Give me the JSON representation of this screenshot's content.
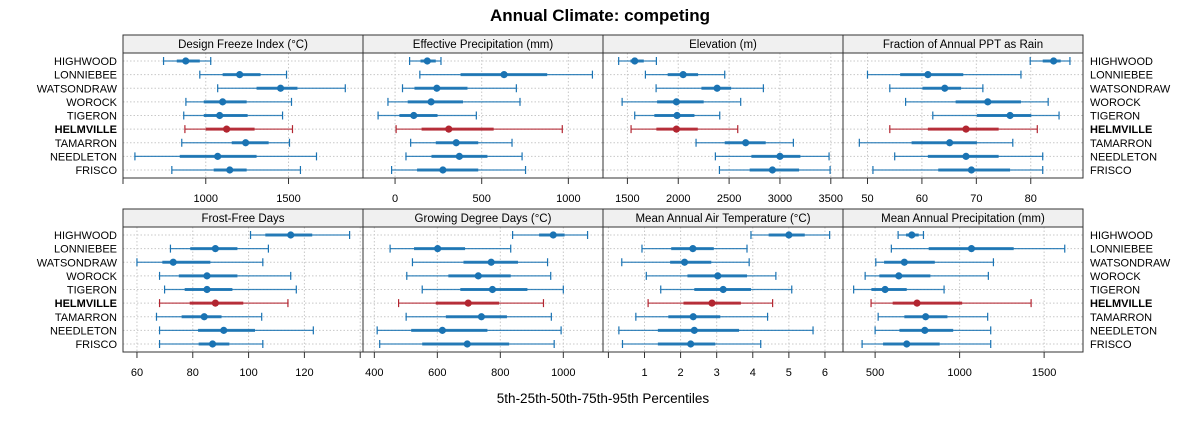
{
  "chart_data": {
    "type": "dot-interval",
    "title": "Annual Climate: competing",
    "xlabel": "5th-25th-50th-75th-95th Percentiles",
    "grid": true,
    "highlight_site": "HELMVILLE",
    "colors": {
      "default": "#1a73b3",
      "highlight": "#b22530",
      "strip": "#f0f0f0",
      "grid": "#c8c8c8"
    },
    "sites": [
      "HIGHWOOD",
      "LONNIEBEE",
      "WATSONDRAW",
      "WOROCK",
      "TIGERON",
      "HELMVILLE",
      "TAMARRON",
      "NEEDLETON",
      "FRISCO"
    ],
    "percentile_order": [
      "p5",
      "p25",
      "p50",
      "p75",
      "p95"
    ],
    "panels": [
      {
        "title": "Design Freeze Index (°C)",
        "xlim": [
          500,
          1950
        ],
        "ticks": [
          500,
          1000,
          1500
        ],
        "tick_labels": [
          "",
          "1000",
          "1500"
        ],
        "values": [
          [
            745,
            825,
            879,
            964,
            1030
          ],
          [
            964,
            1102,
            1205,
            1331,
            1488
          ],
          [
            1072,
            1307,
            1452,
            1554,
            1843
          ],
          [
            880,
            988,
            1102,
            1247,
            1518
          ],
          [
            867,
            988,
            1084,
            1253,
            1464
          ],
          [
            874,
            1000,
            1126,
            1295,
            1524
          ],
          [
            855,
            1157,
            1241,
            1380,
            1506
          ],
          [
            572,
            843,
            1072,
            1307,
            1669
          ],
          [
            795,
            1048,
            1145,
            1247,
            1572
          ]
        ]
      },
      {
        "title": "Effective Precipitation (mm)",
        "xlim": [
          -185,
          1200
        ],
        "ticks": [
          0,
          500,
          1000
        ],
        "tick_labels": [
          "0",
          "500",
          "1000"
        ],
        "values": [
          [
            84,
            147,
            186,
            235,
            265
          ],
          [
            143,
            378,
            629,
            878,
            1139
          ],
          [
            43,
            112,
            241,
            418,
            700
          ],
          [
            -41,
            73,
            208,
            392,
            721
          ],
          [
            -98,
            25,
            108,
            245,
            469
          ],
          [
            6,
            153,
            310,
            569,
            965
          ],
          [
            90,
            235,
            353,
            480,
            675
          ],
          [
            63,
            210,
            371,
            533,
            733
          ],
          [
            -20,
            127,
            276,
            480,
            753
          ]
        ]
      },
      {
        "title": "Elevation (m)",
        "xlim": [
          1260,
          3620
        ],
        "ticks": [
          1500,
          2000,
          2500,
          3000,
          3500
        ],
        "tick_labels": [
          "1500",
          "2000",
          "2500",
          "3000",
          "3500"
        ],
        "values": [
          [
            1414,
            1530,
            1572,
            1661,
            1785
          ],
          [
            1677,
            1896,
            2048,
            2195,
            2457
          ],
          [
            1782,
            2228,
            2382,
            2520,
            2837
          ],
          [
            1448,
            1792,
            1982,
            2250,
            2614
          ],
          [
            1572,
            1765,
            1988,
            2159,
            2408
          ],
          [
            1536,
            1785,
            1982,
            2192,
            2585
          ],
          [
            2175,
            2457,
            2663,
            2860,
            3132
          ],
          [
            2365,
            2719,
            3000,
            3201,
            3483
          ],
          [
            2405,
            2702,
            2926,
            3188,
            3493
          ]
        ]
      },
      {
        "title": "Fraction of Annual PPT as Rain",
        "xlim": [
          45.5,
          89.6
        ],
        "ticks": [
          50,
          60,
          70,
          80
        ],
        "tick_labels": [
          "50",
          "60",
          "70",
          "80"
        ],
        "values": [
          [
            79.9,
            82.2,
            84.2,
            85.5,
            87.2
          ],
          [
            50.0,
            56.0,
            61.1,
            67.6,
            78.2
          ],
          [
            54.1,
            60.1,
            64.2,
            67.2,
            71.2
          ],
          [
            57.0,
            66.2,
            72.1,
            78.2,
            83.2
          ],
          [
            62.0,
            70.1,
            76.2,
            80.1,
            85.2
          ],
          [
            54.1,
            61.1,
            68.1,
            74.1,
            81.2
          ],
          [
            48.5,
            58.1,
            65.1,
            70.1,
            76.7
          ],
          [
            55.0,
            61.1,
            68.1,
            74.1,
            82.2
          ],
          [
            51.0,
            63.0,
            69.1,
            76.2,
            82.2
          ]
        ]
      },
      {
        "title": "Frost-Free Days",
        "xlim": [
          55,
          141
        ],
        "ticks": [
          60,
          80,
          100,
          120,
          140
        ],
        "tick_labels": [
          "60",
          "80",
          "100",
          "120",
          ""
        ],
        "values": [
          [
            100.7,
            106.0,
            115.1,
            122.8,
            136.2
          ],
          [
            72.0,
            79.1,
            88.1,
            96.0,
            107.1
          ],
          [
            60.0,
            69.1,
            73.0,
            86.3,
            105.1
          ],
          [
            68.1,
            75.0,
            85.1,
            96.0,
            115.1
          ],
          [
            69.9,
            77.1,
            85.1,
            94.2,
            117.1
          ],
          [
            68.1,
            78.9,
            88.1,
            98.1,
            114.1
          ],
          [
            67.0,
            76.0,
            84.1,
            90.3,
            104.7
          ],
          [
            68.1,
            81.9,
            91.1,
            102.3,
            123.2
          ],
          [
            68.1,
            82.1,
            87.1,
            93.1,
            105.1
          ]
        ]
      },
      {
        "title": "Growing Degree Days (°C)",
        "xlim": [
          364,
          1126
        ],
        "ticks": [
          400,
          600,
          800,
          1000
        ],
        "tick_labels": [
          "400",
          "600",
          "800",
          "1000"
        ],
        "values": [
          [
            839,
            923,
            968,
            1004,
            1077
          ],
          [
            450,
            526,
            601,
            688,
            833
          ],
          [
            521,
            683,
            771,
            856,
            950
          ],
          [
            503,
            635,
            730,
            833,
            960
          ],
          [
            552,
            673,
            775,
            886,
            1000
          ],
          [
            477,
            595,
            698,
            796,
            937
          ],
          [
            501,
            627,
            740,
            821,
            962
          ],
          [
            409,
            517,
            616,
            759,
            993
          ],
          [
            417,
            552,
            695,
            828,
            971
          ]
        ]
      },
      {
        "title": "Mean Annual Air Temperature (°C)",
        "xlim": [
          -0.15,
          6.5
        ],
        "ticks": [
          0,
          1,
          2,
          3,
          4,
          5,
          6
        ],
        "tick_labels": [
          "",
          "1",
          "2",
          "3",
          "4",
          "5",
          "6"
        ],
        "values": [
          [
            3.95,
            4.44,
            5.0,
            5.44,
            6.13
          ],
          [
            0.93,
            1.74,
            2.34,
            2.92,
            3.84
          ],
          [
            0.37,
            1.71,
            2.11,
            2.85,
            3.9
          ],
          [
            1.05,
            2.19,
            3.03,
            3.84,
            4.64
          ],
          [
            1.45,
            2.38,
            3.18,
            3.95,
            5.08
          ],
          [
            1.1,
            2.08,
            2.87,
            3.67,
            4.55
          ],
          [
            0.76,
            1.66,
            2.35,
            3.1,
            4.41
          ],
          [
            0.29,
            1.37,
            2.38,
            3.62,
            5.67
          ],
          [
            0.39,
            1.37,
            2.28,
            2.96,
            4.22
          ]
        ]
      },
      {
        "title": "Mean Annual Precipitation (mm)",
        "xlim": [
          310,
          1730
        ],
        "ticks": [
          500,
          1000,
          1500
        ],
        "tick_labels": [
          "500",
          "1000",
          "1500"
        ],
        "values": [
          [
            636,
            683,
            717,
            758,
            786
          ],
          [
            596,
            817,
            1070,
            1320,
            1622
          ],
          [
            504,
            553,
            673,
            853,
            1200
          ],
          [
            441,
            525,
            640,
            827,
            1170
          ],
          [
            373,
            478,
            559,
            687,
            908
          ],
          [
            476,
            604,
            748,
            1015,
            1423
          ],
          [
            518,
            673,
            799,
            928,
            1166
          ],
          [
            500,
            644,
            794,
            962,
            1184
          ],
          [
            423,
            547,
            687,
            882,
            1184
          ]
        ]
      }
    ]
  }
}
